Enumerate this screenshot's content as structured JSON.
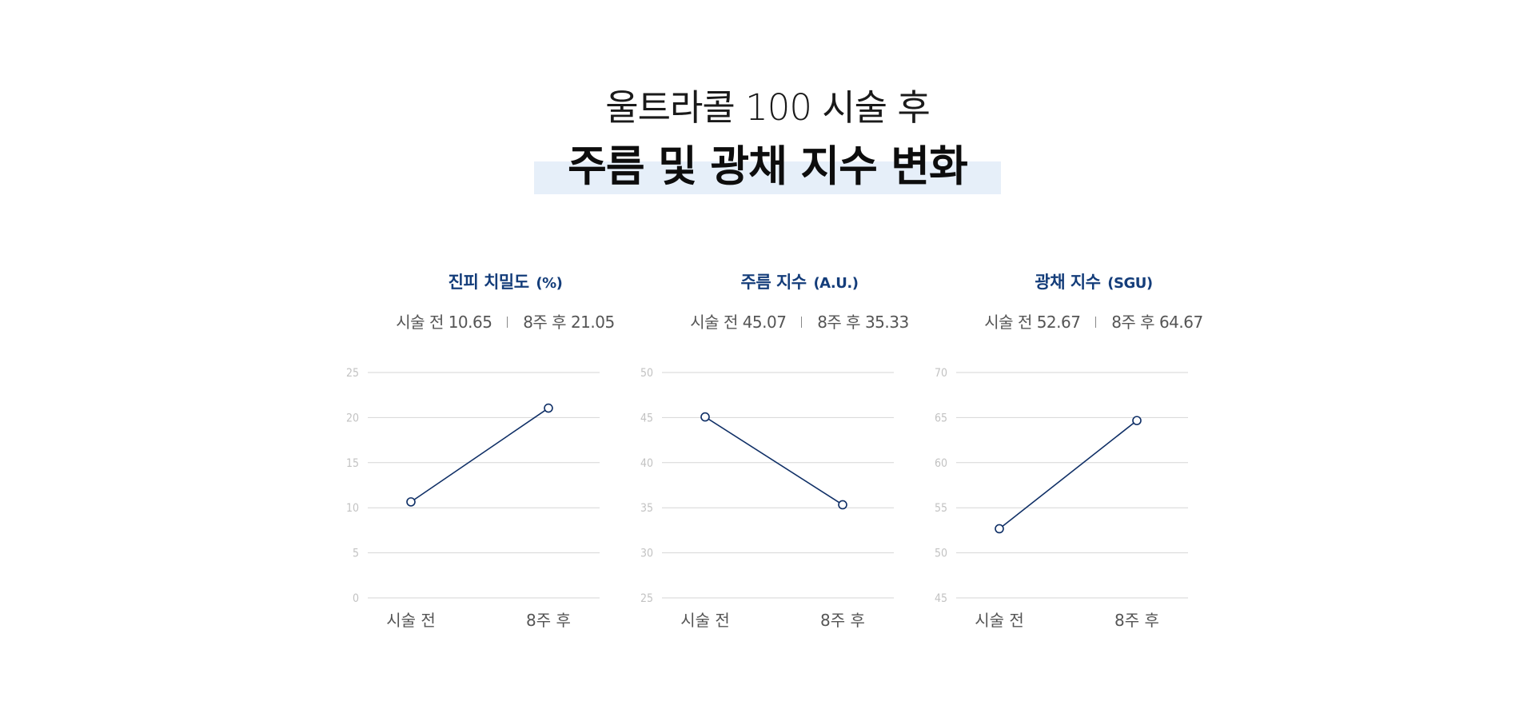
{
  "header": {
    "subtitle": "울트라콜 100 시술 후",
    "title": "주름 및 광채 지수 변화"
  },
  "colors": {
    "accent": "#143d7a",
    "line": "#0f2f66",
    "highlight": "#e6eff9",
    "grid": "#d6d6d6",
    "tick": "#c2c2c2"
  },
  "chart_data": [
    {
      "type": "line",
      "title": "진피 치밀도",
      "unit": "(%)",
      "stats": {
        "before_label": "시술 전",
        "before_value": "10.65",
        "after_label": "8주 후",
        "after_value": "21.05"
      },
      "categories": [
        "시술 전",
        "8주 후"
      ],
      "values": [
        10.65,
        21.05
      ],
      "yticks": [
        0,
        5,
        10,
        15,
        20,
        25
      ],
      "ylim": [
        0,
        25
      ],
      "grid": true
    },
    {
      "type": "line",
      "title": "주름 지수",
      "unit": "(A.U.)",
      "stats": {
        "before_label": "시술 전",
        "before_value": "45.07",
        "after_label": "8주 후",
        "after_value": "35.33"
      },
      "categories": [
        "시술 전",
        "8주 후"
      ],
      "values": [
        45.07,
        35.33
      ],
      "yticks": [
        25,
        30,
        35,
        40,
        45,
        50
      ],
      "ylim": [
        25,
        50
      ],
      "grid": true
    },
    {
      "type": "line",
      "title": "광채 지수",
      "unit": "(SGU)",
      "stats": {
        "before_label": "시술 전",
        "before_value": "52.67",
        "after_label": "8주 후",
        "after_value": "64.67"
      },
      "categories": [
        "시술 전",
        "8주 후"
      ],
      "values": [
        52.67,
        64.67
      ],
      "yticks": [
        45,
        50,
        55,
        60,
        65,
        70
      ],
      "ylim": [
        45,
        70
      ],
      "grid": true
    }
  ]
}
